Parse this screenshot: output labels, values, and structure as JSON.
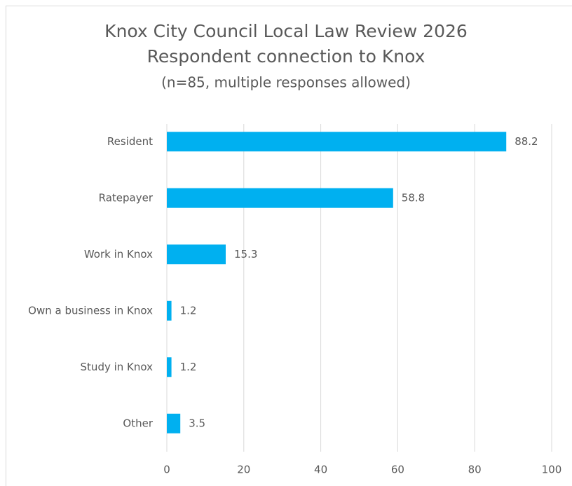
{
  "chart_data": {
    "type": "barh",
    "title": "Knox City Council Local Law Review 2026",
    "subtitle": "Respondent connection to Knox",
    "note": "(n=85, multiple responses allowed)",
    "categories": [
      "Resident",
      "Ratepayer",
      "Work in Knox",
      "Own a business in Knox",
      "Study in Knox",
      "Other"
    ],
    "values": [
      88.2,
      58.8,
      15.3,
      1.2,
      1.2,
      3.5
    ],
    "color": "#00b0f0",
    "xlim": [
      0,
      100
    ],
    "xticks": [
      0,
      20,
      40,
      60,
      80,
      100
    ],
    "grid": true
  }
}
